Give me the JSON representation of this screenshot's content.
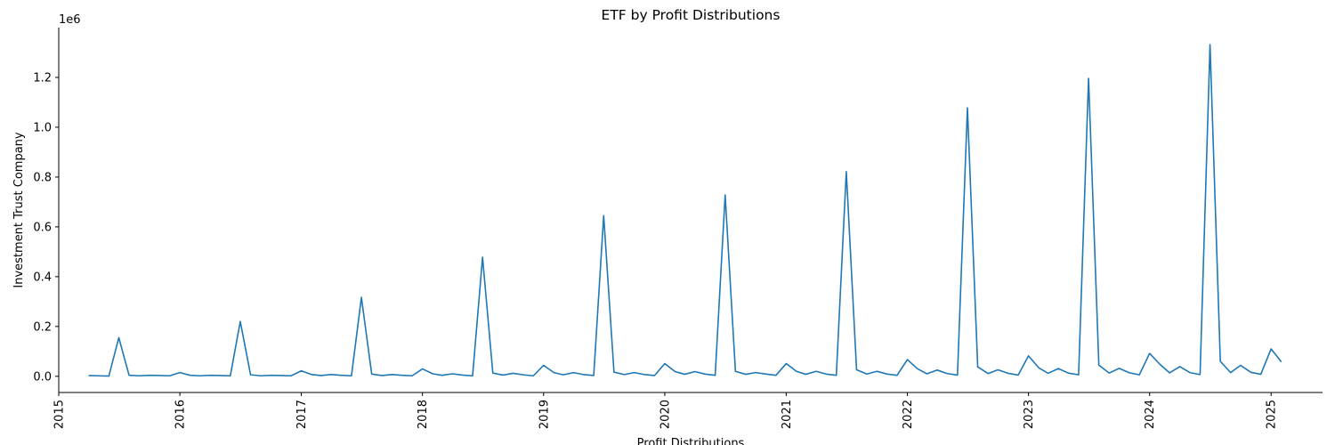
{
  "chart_data": {
    "type": "line",
    "title": "ETF by Profit Distributions",
    "xlabel": "Profit Distributions",
    "ylabel": "Investment Trust Company",
    "y_multiplier_label": "1e6",
    "xlim": [
      "2015-01-01",
      "2025-06-05"
    ],
    "ylim": [
      -65000,
      1400000
    ],
    "x_ticks": [
      "2015",
      "2016",
      "2017",
      "2018",
      "2019",
      "2020",
      "2021",
      "2022",
      "2023",
      "2024",
      "2025"
    ],
    "y_ticks": [
      {
        "value": 0,
        "label": "0.0"
      },
      {
        "value": 200000,
        "label": "0.2"
      },
      {
        "value": 400000,
        "label": "0.4"
      },
      {
        "value": 600000,
        "label": "0.6"
      },
      {
        "value": 800000,
        "label": "0.8"
      },
      {
        "value": 1000000,
        "label": "1.0"
      },
      {
        "value": 1200000,
        "label": "1.2"
      }
    ],
    "grid": false,
    "series": [
      {
        "color": "#1f77b4",
        "x": [
          "2015-04-01",
          "2015-05-01",
          "2015-06-01",
          "2015-07-01",
          "2015-08-01",
          "2015-09-01",
          "2015-10-01",
          "2015-11-01",
          "2015-12-01",
          "2016-01-01",
          "2016-02-01",
          "2016-03-01",
          "2016-04-01",
          "2016-05-01",
          "2016-06-01",
          "2016-07-01",
          "2016-08-01",
          "2016-09-01",
          "2016-10-01",
          "2016-11-01",
          "2016-12-01",
          "2017-01-01",
          "2017-02-01",
          "2017-03-01",
          "2017-04-01",
          "2017-05-01",
          "2017-06-01",
          "2017-07-01",
          "2017-08-01",
          "2017-09-01",
          "2017-10-01",
          "2017-11-01",
          "2017-12-01",
          "2018-01-01",
          "2018-02-01",
          "2018-03-01",
          "2018-04-01",
          "2018-05-01",
          "2018-06-01",
          "2018-07-01",
          "2018-08-01",
          "2018-09-01",
          "2018-10-01",
          "2018-11-01",
          "2018-12-01",
          "2019-01-01",
          "2019-02-01",
          "2019-03-01",
          "2019-04-01",
          "2019-05-01",
          "2019-06-01",
          "2019-07-01",
          "2019-08-01",
          "2019-09-01",
          "2019-10-01",
          "2019-11-01",
          "2019-12-01",
          "2020-01-01",
          "2020-02-01",
          "2020-03-01",
          "2020-04-01",
          "2020-05-01",
          "2020-06-01",
          "2020-07-01",
          "2020-08-01",
          "2020-09-01",
          "2020-10-01",
          "2020-11-01",
          "2020-12-01",
          "2021-01-01",
          "2021-02-01",
          "2021-03-01",
          "2021-04-01",
          "2021-05-01",
          "2021-06-01",
          "2021-07-01",
          "2021-08-01",
          "2021-09-01",
          "2021-10-01",
          "2021-11-01",
          "2021-12-01",
          "2022-01-01",
          "2022-02-01",
          "2022-03-01",
          "2022-04-01",
          "2022-05-01",
          "2022-06-01",
          "2022-07-01",
          "2022-08-01",
          "2022-09-01",
          "2022-10-01",
          "2022-11-01",
          "2022-12-01",
          "2023-01-01",
          "2023-02-01",
          "2023-03-01",
          "2023-04-01",
          "2023-05-01",
          "2023-06-01",
          "2023-07-01",
          "2023-08-01",
          "2023-09-01",
          "2023-10-01",
          "2023-11-01",
          "2023-12-01",
          "2024-01-01",
          "2024-02-01",
          "2024-03-01",
          "2024-04-01",
          "2024-05-01",
          "2024-06-01",
          "2024-07-01",
          "2024-08-01",
          "2024-09-01",
          "2024-10-01",
          "2024-11-01",
          "2024-12-01",
          "2025-01-01",
          "2025-02-01"
        ],
        "values": [
          3000,
          2000,
          1000,
          155000,
          4000,
          2000,
          4000,
          3000,
          2000,
          15000,
          4000,
          2000,
          4000,
          3000,
          2000,
          220000,
          6000,
          2000,
          4000,
          3000,
          2000,
          22000,
          7000,
          3000,
          7000,
          4000,
          2000,
          317000,
          9000,
          3000,
          7000,
          4000,
          2000,
          30000,
          10000,
          4000,
          10000,
          5000,
          2000,
          478000,
          13000,
          5000,
          12000,
          6000,
          2000,
          44000,
          15000,
          6000,
          15000,
          7000,
          3000,
          645000,
          17000,
          7000,
          15000,
          7000,
          3000,
          51000,
          19000,
          8000,
          19000,
          9000,
          4000,
          728000,
          20000,
          8000,
          15000,
          9000,
          4000,
          51000,
          20000,
          8000,
          20000,
          9000,
          4000,
          822000,
          26000,
          9000,
          20000,
          9000,
          4000,
          67000,
          30000,
          10000,
          25000,
          11000,
          5000,
          1078000,
          38000,
          11000,
          26000,
          12000,
          5000,
          82000,
          34000,
          12000,
          31000,
          13000,
          6000,
          1196000,
          45000,
          13000,
          32000,
          14000,
          6000,
          92000,
          48000,
          14000,
          39000,
          15000,
          7000,
          1332000,
          60000,
          15000,
          44000,
          16000,
          8000,
          110000,
          58000
        ]
      }
    ]
  }
}
